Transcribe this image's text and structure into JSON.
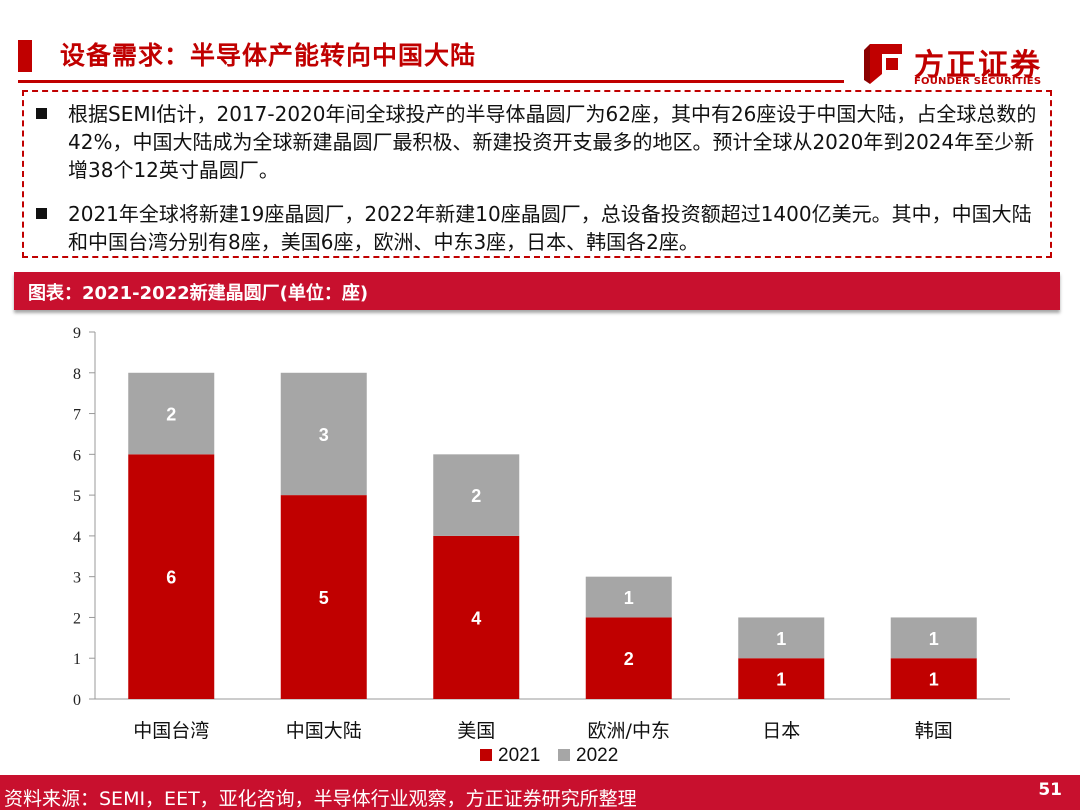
{
  "header": {
    "title": "设备需求：半导体产能转向中国大陆"
  },
  "logo": {
    "name_cn": "方正证券",
    "name_en": "FOUNDER SECURITIES",
    "brand_color": "#C00000"
  },
  "notes": [
    "根据SEMI估计，2017-2020年间全球投产的半导体晶圆厂为62座，其中有26座设于中国大陆，占全球总数的42%，中国大陆成为全球新建晶圆厂最积极、新建投资开支最多的地区。预计全球从2020年到2024年至少新增38个12英寸晶圆厂。",
    "2021年全球将新建19座晶圆厂，2022年新建10座晶圆厂，总设备投资额超过1400亿美元。其中，中国大陆和中国台湾分别有8座，美国6座，欧洲、中东3座，日本、韩国各2座。"
  ],
  "chart_header": "图表：2021-2022新建晶圆厂(单位：座)",
  "chart_data": {
    "type": "bar",
    "stacked": true,
    "categories": [
      "中国台湾",
      "中国大陆",
      "美国",
      "欧洲/中东",
      "日本",
      "韩国"
    ],
    "series": [
      {
        "name": "2021",
        "values": [
          6,
          5,
          4,
          2,
          1,
          1
        ],
        "color": "#C00000"
      },
      {
        "name": "2022",
        "values": [
          2,
          3,
          2,
          1,
          1,
          1
        ],
        "color": "#A6A6A6"
      }
    ],
    "ylim": [
      0,
      9
    ],
    "yticks": [
      "0",
      "1",
      "2",
      "3",
      "4",
      "5",
      "6",
      "7",
      "8",
      "9"
    ],
    "legend_position": "bottom",
    "grid": false
  },
  "footer": {
    "source": "资料来源：SEMI，EET，亚化咨询，半导体行业观察，方正证券研究所整理",
    "page_number": "51"
  }
}
